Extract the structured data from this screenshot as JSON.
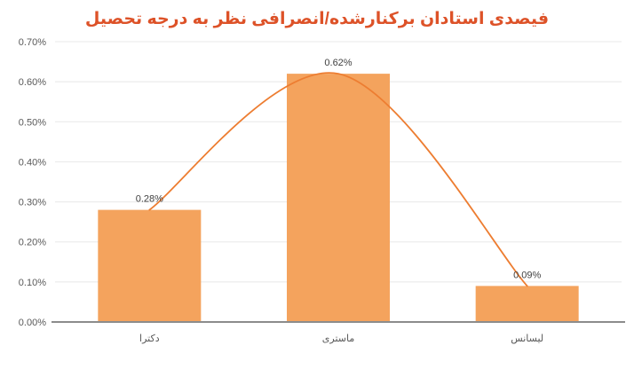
{
  "chart_data": {
    "type": "bar",
    "title": "فیصدی استادان برکنارشده/انصرافی نظر به درجه تحصیل",
    "categories": [
      "دکترا",
      "ماستری",
      "لیسانس"
    ],
    "values": [
      0.28,
      0.62,
      0.09
    ],
    "data_labels": [
      "0.28%",
      "0.62%",
      "0.09%"
    ],
    "y_ticks": [
      "0.00%",
      "0.10%",
      "0.20%",
      "0.30%",
      "0.40%",
      "0.50%",
      "0.60%",
      "0.70%"
    ],
    "ylim": [
      0,
      0.7
    ],
    "grid": true,
    "legend": "none",
    "overlay_line": "smooth trend curve passing through the three bar tops",
    "colors": {
      "bar": "#F4A35D",
      "line": "#ED7D31",
      "title": "#DD5228",
      "axis_text": "#595959",
      "data_label": "#3F3F3F",
      "gridline": "#E8E8E8",
      "axis_line": "#8C8C8C",
      "background": "#FFFFFF"
    }
  }
}
